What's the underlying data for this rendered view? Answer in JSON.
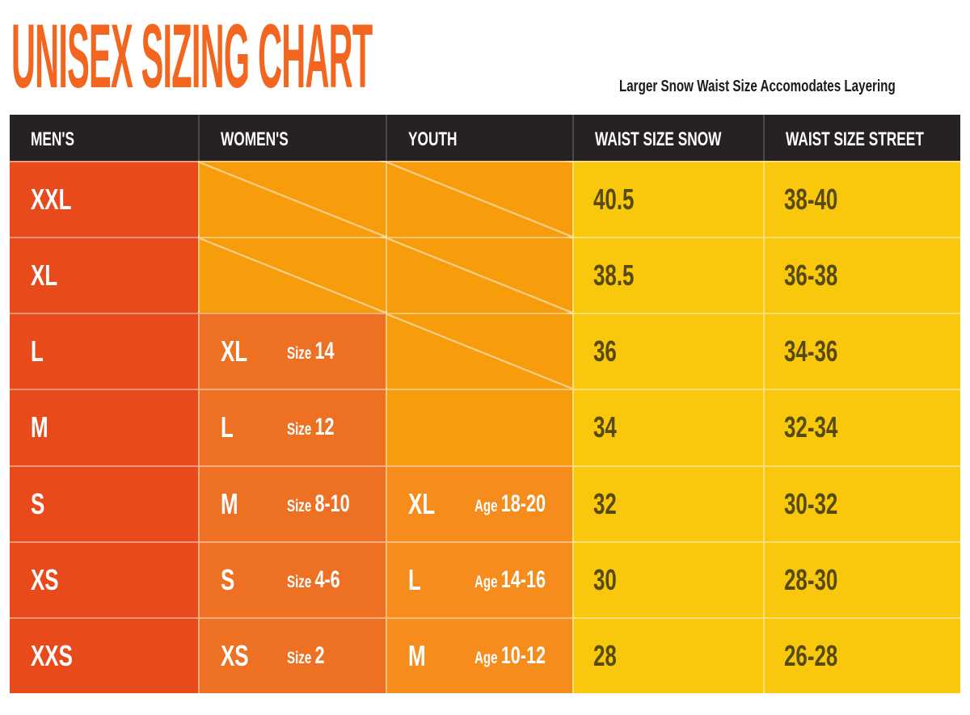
{
  "title": "UNISEX SIZING CHART",
  "note": "Larger Snow Waist Size Accomodates Layering",
  "colors": {
    "accent_orange": "#F2661F",
    "header_bg": "#262122",
    "mens_bg": "#E84A1C",
    "womens_bg": "#EE7123",
    "youth_bg": "#F68C1B",
    "na_bg": "#F79D0C",
    "waist_bg": "#F9C80D",
    "waist_text": "#564A0E"
  },
  "table": {
    "columns": [
      {
        "key": "mens",
        "label": "MEN'S"
      },
      {
        "key": "womens",
        "label": "WOMEN'S"
      },
      {
        "key": "youth",
        "label": "YOUTH"
      },
      {
        "key": "snow",
        "label": "WAIST SIZE SNOW"
      },
      {
        "key": "street",
        "label": "WAIST SIZE STREET"
      }
    ],
    "rows": [
      {
        "mens": "XXL",
        "womens": {
          "na": true
        },
        "youth": {
          "na": true
        },
        "snow": "40.5",
        "street": "38-40"
      },
      {
        "mens": "XL",
        "womens": {
          "na": true
        },
        "youth": {
          "na": true
        },
        "snow": "38.5",
        "street": "36-38"
      },
      {
        "mens": "L",
        "womens": {
          "size": "XL",
          "label": "Size",
          "value": "14"
        },
        "youth": {
          "na": true
        },
        "snow": "36",
        "street": "34-36"
      },
      {
        "mens": "M",
        "womens": {
          "size": "L",
          "label": "Size",
          "value": "12"
        },
        "youth": {
          "empty": true
        },
        "snow": "34",
        "street": "32-34"
      },
      {
        "mens": "S",
        "womens": {
          "size": "M",
          "label": "Size",
          "value": "8-10"
        },
        "youth": {
          "size": "XL",
          "label": "Age",
          "value": "18-20"
        },
        "snow": "32",
        "street": "30-32"
      },
      {
        "mens": "XS",
        "womens": {
          "size": "S",
          "label": "Size",
          "value": "4-6"
        },
        "youth": {
          "size": "L",
          "label": "Age",
          "value": "14-16"
        },
        "snow": "30",
        "street": "28-30"
      },
      {
        "mens": "XXS",
        "womens": {
          "size": "XS",
          "label": "Size",
          "value": "2"
        },
        "youth": {
          "size": "M",
          "label": "Age",
          "value": "10-12"
        },
        "snow": "28",
        "street": "26-28"
      }
    ]
  },
  "chart_data": {
    "type": "table",
    "title": "UNISEX SIZING CHART",
    "annotation": "Larger Snow Waist Size Accomodates Layering",
    "columns": [
      "MEN'S",
      "WOMEN'S",
      "YOUTH",
      "WAIST SIZE SNOW",
      "WAIST SIZE STREET"
    ],
    "rows": [
      [
        "XXL",
        "N/A",
        "N/A",
        "40.5",
        "38-40"
      ],
      [
        "XL",
        "N/A",
        "N/A",
        "38.5",
        "36-38"
      ],
      [
        "L",
        "XL Size 14",
        "N/A",
        "36",
        "34-36"
      ],
      [
        "M",
        "L Size 12",
        "",
        "34",
        "32-34"
      ],
      [
        "S",
        "M Size 8-10",
        "XL Age 18-20",
        "32",
        "30-32"
      ],
      [
        "XS",
        "S Size 4-6",
        "L Age 14-16",
        "30",
        "28-30"
      ],
      [
        "XXS",
        "XS Size 2",
        "M Age 10-12",
        "28",
        "26-28"
      ]
    ]
  }
}
